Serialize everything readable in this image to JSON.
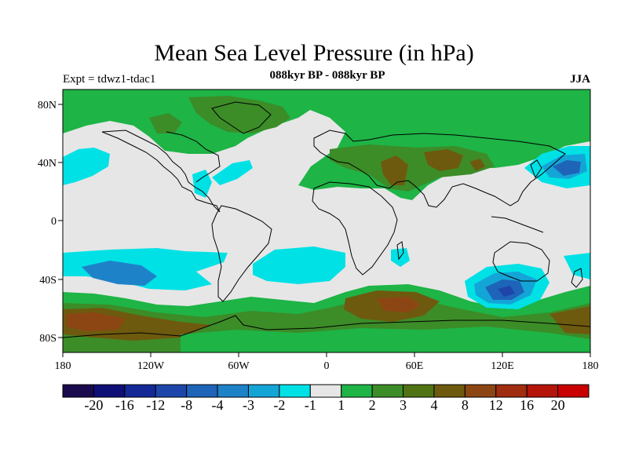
{
  "title": "Mean Sea Level Pressure (in hPa)",
  "subtitle": "088kyr BP - 088kyr BP",
  "experiment": "Expt = tdwz1-tdac1",
  "season": "JJA",
  "x_ticks": [
    "180",
    "120W",
    "60W",
    "0",
    "60E",
    "120E",
    "180"
  ],
  "y_ticks": [
    "80N",
    "40N",
    "0",
    "40S",
    "80S"
  ],
  "colorbar": {
    "labels": [
      "-20",
      "-16",
      "-12",
      "-8",
      "-4",
      "-3",
      "-2",
      "-1",
      "1",
      "2",
      "3",
      "4",
      "8",
      "12",
      "16",
      "20"
    ],
    "colors": [
      "#1a0a4e",
      "#0f0f78",
      "#142896",
      "#1e46aa",
      "#1e64b9",
      "#1e82c8",
      "#14a5d7",
      "#00e1e6",
      "#e6e6e6",
      "#1eb446",
      "#3c8c28",
      "#507314",
      "#6e5a0f",
      "#8c4614",
      "#a02d0f",
      "#b4140a",
      "#c80000"
    ]
  },
  "colors": {
    "neutral": "#e6e6e6",
    "green": "#1eb446",
    "dark_green": "#3c8c28",
    "olive": "#6e5a0f",
    "brown": "#8c4614",
    "cyan": "#00e1e6",
    "light_blue": "#14a5d7",
    "blue": "#1e64b9",
    "deep_blue": "#1e46aa"
  }
}
